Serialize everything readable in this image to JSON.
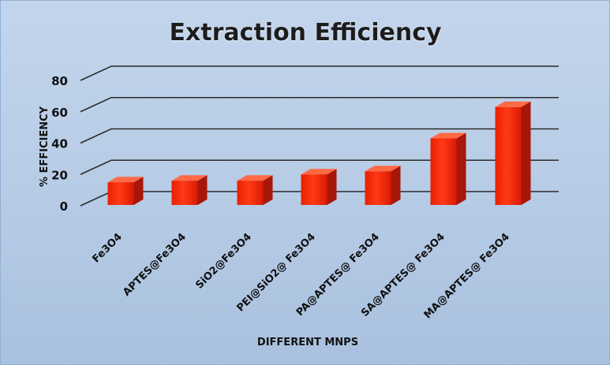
{
  "chart_data": {
    "type": "bar",
    "title": "Extraction Efficiency",
    "xlabel": "DIFFERENT MNPS",
    "ylabel": "% EFFICIENCY",
    "categories": [
      "Fe3O4",
      "APTES@Fe3O4",
      "SiO2@Fe3O4",
      "PEI@SiO2@ Fe3O4",
      "PA@APTES@ Fe3O4",
      "SA@APTES@ Fe3O4",
      "MA@APTES@ Fe3O4"
    ],
    "values": [
      15,
      16,
      16,
      20,
      22,
      43,
      63
    ],
    "ylim": [
      0,
      80
    ],
    "yticks": [
      0,
      20,
      40,
      60,
      80
    ],
    "grid": true,
    "style": "3d",
    "colors": {
      "bar_front": "#ff2a0c",
      "bar_side": "#a8160a",
      "bar_top": "#ff6a45",
      "background": "#b9cde6"
    }
  }
}
